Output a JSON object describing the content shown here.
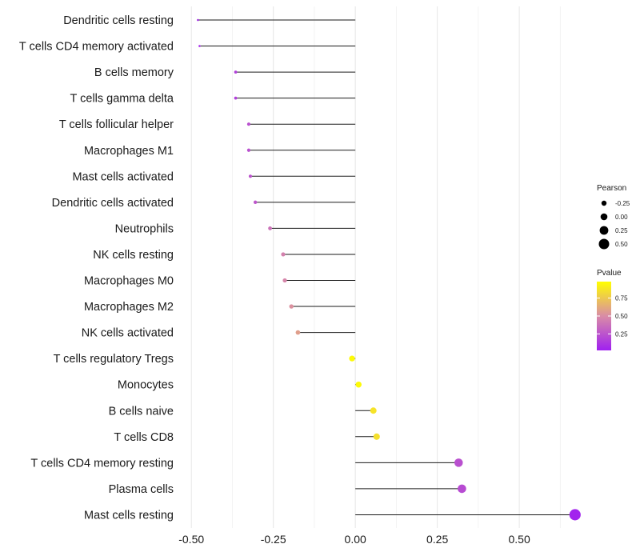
{
  "chart_data": {
    "type": "lollipop",
    "title": "",
    "xlabel": "",
    "ylabel": "",
    "xlim": [
      -0.52,
      0.69
    ],
    "xticks": [
      -0.5,
      -0.25,
      0.0,
      0.25,
      0.5
    ],
    "xtick_labels": [
      "-0.50",
      "-0.25",
      "0.00",
      "0.25",
      "0.50"
    ],
    "grid": true,
    "categories": [
      "Dendritic cells resting",
      "T cells CD4 memory activated",
      "B cells memory",
      "T cells gamma delta",
      "T cells follicular helper",
      "Macrophages M1",
      "Mast cells activated",
      "Dendritic cells activated",
      "Neutrophils",
      "NK cells resting",
      "Macrophages M0",
      "Macrophages M2",
      "NK cells activated",
      "T cells regulatory  Tregs",
      "Monocytes",
      "B cells naive",
      "T cells CD8",
      "T cells CD4 memory resting",
      "Plasma cells",
      "Mast cells resting"
    ],
    "pearson": [
      -0.48,
      -0.475,
      -0.365,
      -0.365,
      -0.325,
      -0.325,
      -0.32,
      -0.305,
      -0.26,
      -0.22,
      -0.215,
      -0.195,
      -0.175,
      -0.01,
      0.01,
      0.055,
      0.065,
      0.315,
      0.325,
      0.67
    ],
    "pvalue": [
      0.05,
      0.05,
      0.15,
      0.15,
      0.22,
      0.22,
      0.24,
      0.25,
      0.38,
      0.45,
      0.47,
      0.52,
      0.58,
      0.98,
      0.98,
      0.88,
      0.86,
      0.22,
      0.2,
      0.02
    ],
    "legend": {
      "position": "right",
      "size_title": "Pearson",
      "size_breaks": [
        "-0.25",
        "0.00",
        "0.25",
        "0.50"
      ],
      "color_title": "Pvalue",
      "color_breaks": [
        "0.75",
        "0.50",
        "0.25"
      ],
      "color_low": "#a020f0",
      "color_mid": "#d98ca6",
      "color_high": "#ffff00"
    }
  }
}
